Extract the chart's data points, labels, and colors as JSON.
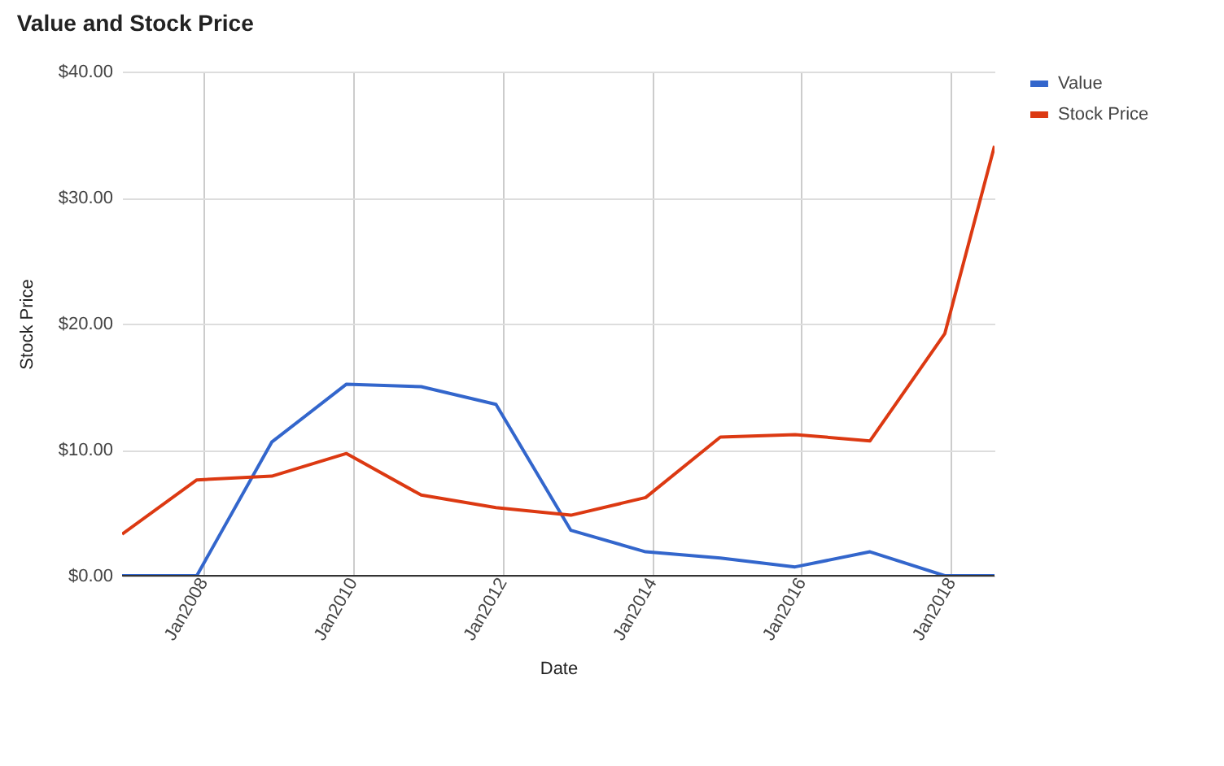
{
  "chart_data": {
    "type": "line",
    "title": "Value and Stock Price",
    "xlabel": "Date",
    "ylabel": "Stock Price",
    "x": [
      "2006-12",
      "2007-12",
      "2008-12",
      "2009-12",
      "2010-12",
      "2011-12",
      "2012-12",
      "2013-12",
      "2014-12",
      "2015-12",
      "2016-12",
      "2017-12",
      "2018-08"
    ],
    "series": [
      {
        "name": "Value",
        "color": "#3366cc",
        "values": [
          0,
          0,
          10.6,
          15.2,
          15.0,
          13.6,
          3.6,
          1.9,
          1.4,
          0.7,
          1.9,
          0,
          0
        ]
      },
      {
        "name": "Stock Price",
        "color": "#dc3912",
        "values": [
          3.3,
          7.6,
          7.9,
          9.7,
          6.4,
          5.4,
          4.8,
          6.2,
          11.0,
          11.2,
          10.7,
          19.2,
          34.1
        ]
      }
    ],
    "xlim": [
      "2006-12",
      "2018-08"
    ],
    "xticks": [
      {
        "value": "2008-01",
        "label": "Jan2008"
      },
      {
        "value": "2010-01",
        "label": "Jan2010"
      },
      {
        "value": "2012-01",
        "label": "Jan2012"
      },
      {
        "value": "2014-01",
        "label": "Jan2014"
      },
      {
        "value": "2016-01",
        "label": "Jan2016"
      },
      {
        "value": "2018-01",
        "label": "Jan2018"
      }
    ],
    "ylim": [
      0,
      40
    ],
    "yticks": [
      {
        "value": 0,
        "label": "$0.00"
      },
      {
        "value": 10,
        "label": "$10.00"
      },
      {
        "value": 20,
        "label": "$20.00"
      },
      {
        "value": 30,
        "label": "$30.00"
      },
      {
        "value": 40,
        "label": "$40.00"
      }
    ],
    "grid": true,
    "legend": "top right",
    "marker": "none",
    "line_style": "solid"
  }
}
